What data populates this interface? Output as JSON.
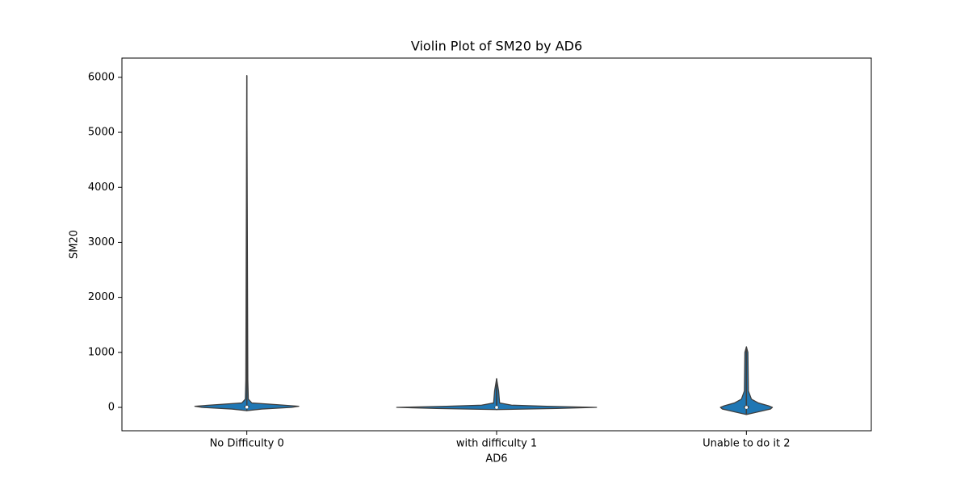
{
  "chart_data": {
    "type": "violin",
    "title": "Violin Plot of SM20 by AD6",
    "x_label": "AD6",
    "y_label": "SM20",
    "categories": [
      "No Difficulty 0",
      "with difficulty 1",
      "Unable to do it 2"
    ],
    "color": "#1f77b4",
    "edge_color": "#3f3f3f",
    "ylim": [
      -425,
      6350
    ],
    "yticks": [
      0,
      1000,
      2000,
      3000,
      4000,
      5000,
      6000
    ],
    "violins": [
      {
        "min": -60,
        "max": 6030,
        "box": [
          -5,
          5,
          30
        ],
        "density": {
          "y": [
            -60,
            -30,
            0,
            20,
            50,
            80,
            150,
            500,
            6030
          ],
          "width": [
            0,
            0.15,
            0.45,
            0.52,
            0.3,
            0.05,
            0.015,
            0.01,
            0
          ]
        }
      },
      {
        "min": -40,
        "max": 520,
        "box": [
          -10,
          0,
          10
        ],
        "density": {
          "y": [
            -40,
            -20,
            0,
            20,
            40,
            80,
            300,
            520
          ],
          "width": [
            0,
            0.6,
            1,
            0.5,
            0.15,
            0.03,
            0.02,
            0
          ]
        }
      },
      {
        "min": -130,
        "max": 1100,
        "box": [
          -20,
          0,
          30
        ],
        "density": {
          "y": [
            -130,
            -80,
            -30,
            0,
            30,
            80,
            150,
            300,
            1000,
            1100
          ],
          "width": [
            0,
            0.12,
            0.24,
            0.26,
            0.22,
            0.12,
            0.05,
            0.02,
            0.015,
            0
          ]
        }
      }
    ]
  }
}
